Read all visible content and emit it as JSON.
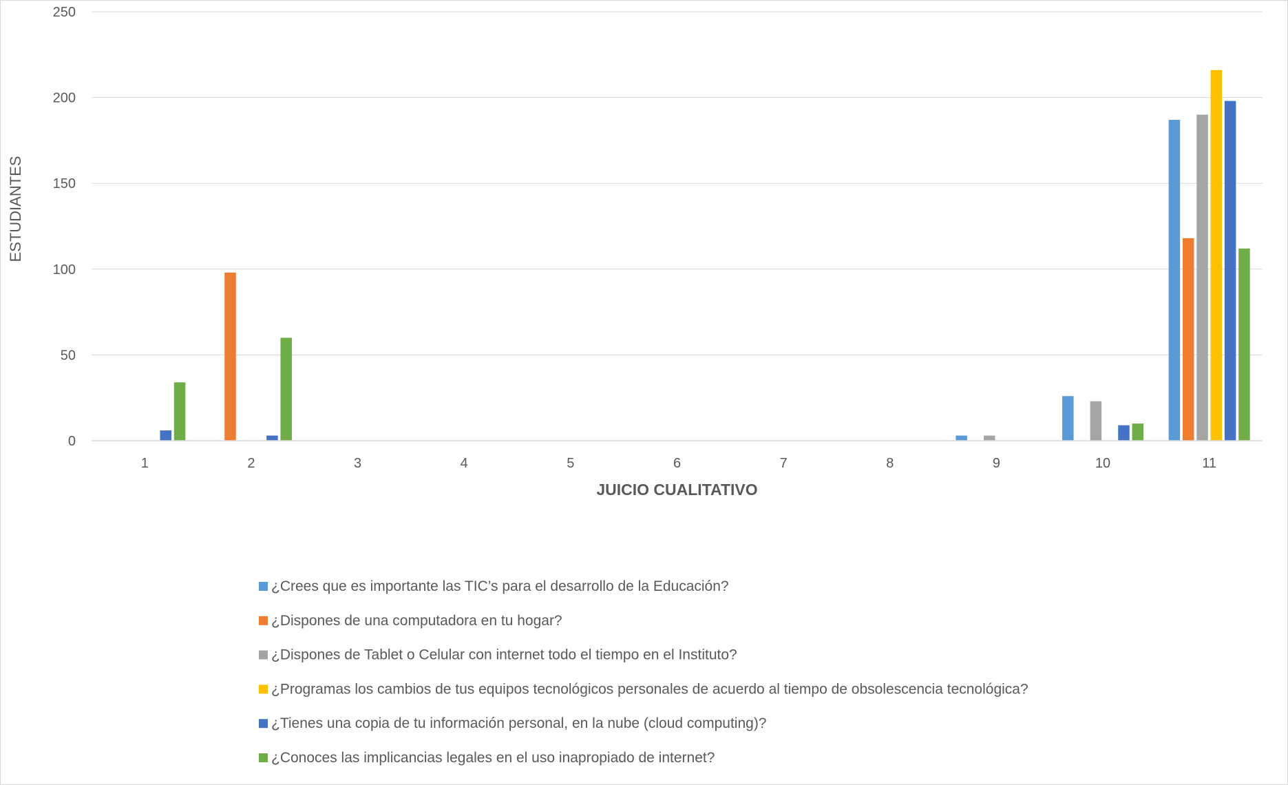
{
  "chart_data": {
    "type": "bar",
    "title": "",
    "xlabel": "JUICIO CUALITATIVO",
    "ylabel": "ESTUDIANTES",
    "ylim": [
      0,
      250
    ],
    "yticks": [
      0,
      50,
      100,
      150,
      200,
      250
    ],
    "grid": true,
    "legend_position": "bottom",
    "categories": [
      "1",
      "2",
      "3",
      "4",
      "5",
      "6",
      "7",
      "8",
      "9",
      "10",
      "11"
    ],
    "series": [
      {
        "name": "¿Crees que es importante las TIC’s para el desarrollo de la Educación?",
        "color": "#5B9BD5",
        "values": [
          0,
          0,
          0,
          0,
          0,
          0,
          0,
          0,
          3,
          26,
          187
        ]
      },
      {
        "name": "¿Dispones de una computadora en tu hogar?",
        "color": "#ED7D31",
        "values": [
          0,
          98,
          0,
          0,
          0,
          0,
          0,
          0,
          0,
          0,
          118
        ]
      },
      {
        "name": "¿Dispones de Tablet o Celular con internet todo el tiempo en el Instituto?",
        "color": "#A5A5A5",
        "values": [
          0,
          0,
          0,
          0,
          0,
          0,
          0,
          0,
          3,
          23,
          190
        ]
      },
      {
        "name": "¿Programas los cambios de tus equipos tecnológicos personales de acuerdo al tiempo de obsolescencia tecnológica?",
        "color": "#FFC000",
        "values": [
          0,
          0,
          0,
          0,
          0,
          0,
          0,
          0,
          0,
          0,
          216
        ]
      },
      {
        "name": "¿Tienes una copia de tu información personal, en la nube (cloud computing)?",
        "color": "#4472C4",
        "values": [
          6,
          3,
          0,
          0,
          0,
          0,
          0,
          0,
          0,
          9,
          198
        ]
      },
      {
        "name": "¿Conoces las implicancias legales en el uso inapropiado de internet?",
        "color": "#70AD47",
        "values": [
          34,
          60,
          0,
          0,
          0,
          0,
          0,
          0,
          0,
          10,
          112
        ]
      }
    ]
  }
}
